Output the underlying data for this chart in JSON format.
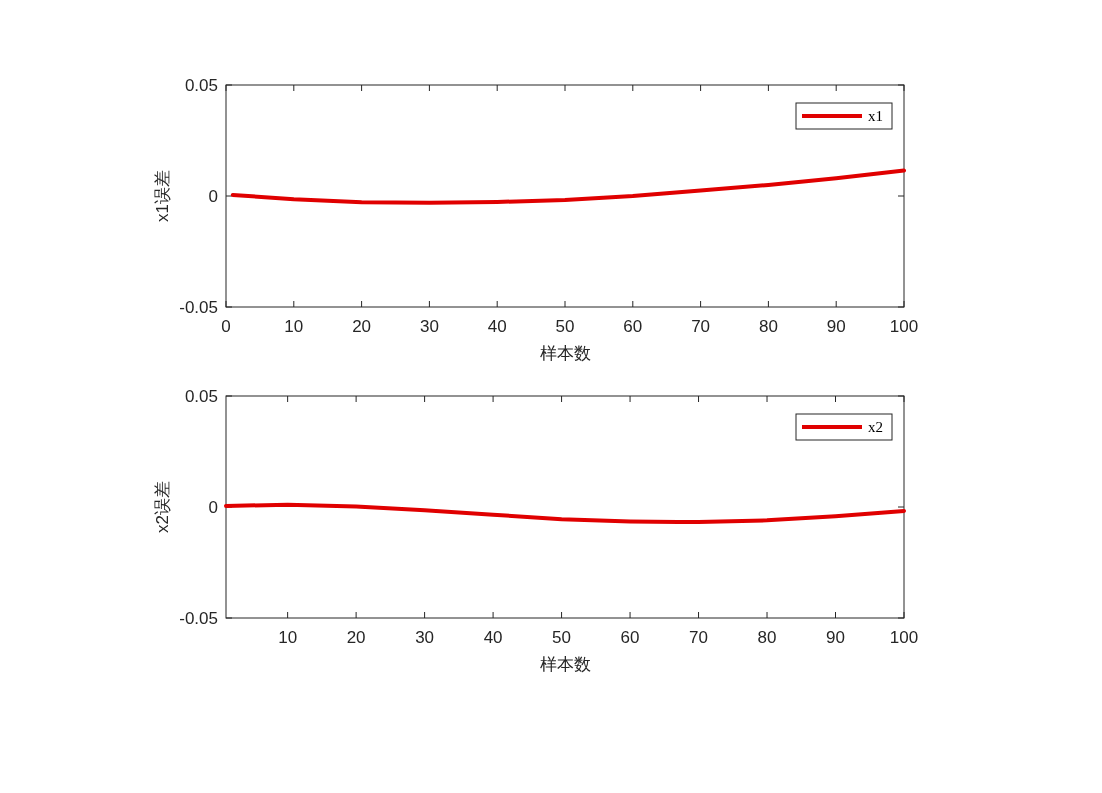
{
  "chart_data": [
    {
      "type": "line",
      "xlabel": "样本数",
      "ylabel": "x1误差",
      "xlim": [
        0,
        100
      ],
      "xticks": [
        0,
        10,
        20,
        30,
        40,
        50,
        60,
        70,
        80,
        90,
        100
      ],
      "ylim": [
        -0.05,
        0.05
      ],
      "yticks": [
        -0.05,
        0,
        0.05
      ],
      "legend": "top right",
      "series": [
        {
          "name": "x1",
          "color": "#e00000",
          "x": [
            1,
            10,
            20,
            30,
            40,
            50,
            60,
            70,
            80,
            90,
            100
          ],
          "values": [
            0.0005,
            -0.0015,
            -0.0028,
            -0.003,
            -0.0027,
            -0.0018,
            0.0,
            0.0025,
            0.005,
            0.008,
            0.0115
          ]
        }
      ]
    },
    {
      "type": "line",
      "xlabel": "样本数",
      "ylabel": "x2误差",
      "xlim": [
        1,
        100
      ],
      "xticks": [
        10,
        20,
        30,
        40,
        50,
        60,
        70,
        80,
        90,
        100
      ],
      "ylim": [
        -0.05,
        0.05
      ],
      "yticks": [
        -0.05,
        0,
        0.05
      ],
      "legend": "top right",
      "series": [
        {
          "name": "x2",
          "color": "#e00000",
          "x": [
            1,
            10,
            20,
            30,
            40,
            50,
            60,
            67,
            70,
            80,
            90,
            100
          ],
          "values": [
            0.0005,
            0.001,
            0.0002,
            -0.0015,
            -0.0035,
            -0.0055,
            -0.0065,
            -0.0068,
            -0.0068,
            -0.006,
            -0.0042,
            -0.0018
          ]
        }
      ]
    }
  ]
}
